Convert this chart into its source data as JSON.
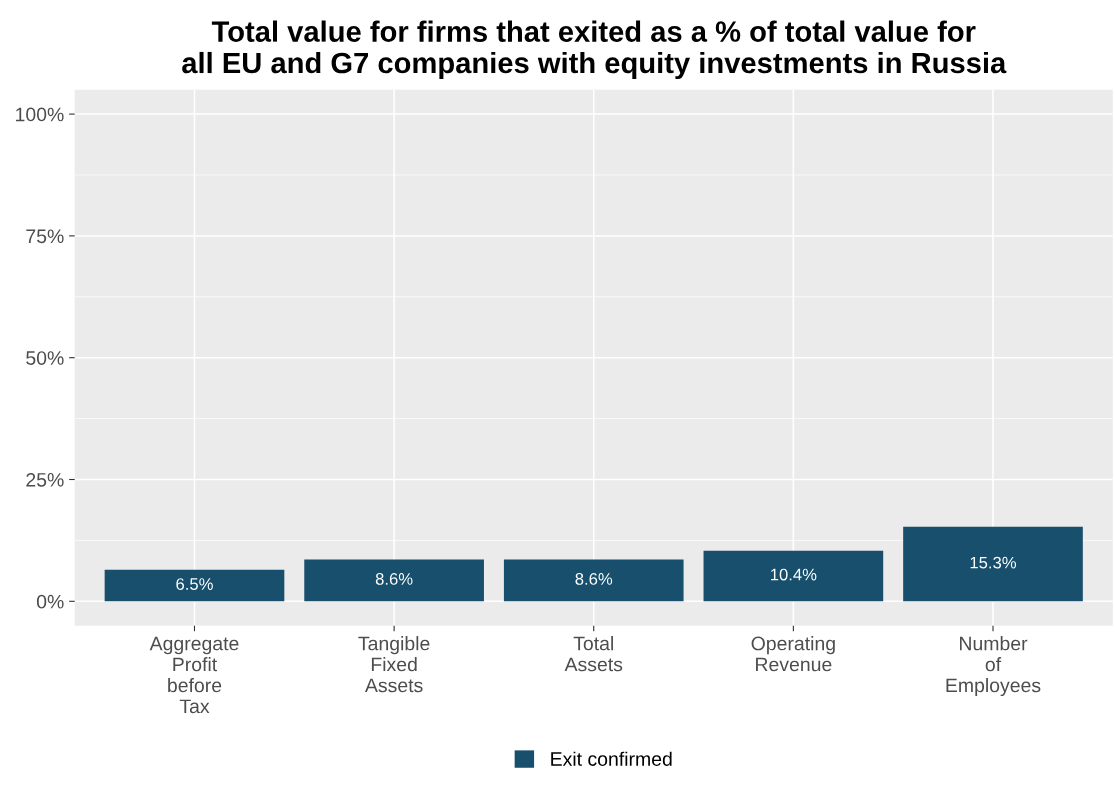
{
  "chart_data": {
    "type": "bar",
    "title": "Total value for firms that exited as a % of total value for\nall EU and G7 companies with equity investments in Russia",
    "categories": [
      "Aggregate\nProfit\nbefore\nTax",
      "Tangible\nFixed\nAssets",
      "Total\nAssets",
      "Operating\nRevenue",
      "Number\nof\nEmployees"
    ],
    "series": [
      {
        "name": "Exit confirmed",
        "color": "#174f6d",
        "values": [
          6.5,
          8.6,
          8.6,
          10.4,
          15.3
        ],
        "value_labels": [
          "6.5%",
          "8.6%",
          "8.6%",
          "10.4%",
          "15.3%"
        ]
      }
    ],
    "ylim": [
      -5,
      105
    ],
    "yticks": [
      {
        "value": 0,
        "label": "0%"
      },
      {
        "value": 25,
        "label": "25%"
      },
      {
        "value": 50,
        "label": "50%"
      },
      {
        "value": 75,
        "label": "75%"
      },
      {
        "value": 100,
        "label": "100%"
      }
    ],
    "grid": true,
    "legend": "bottom"
  }
}
